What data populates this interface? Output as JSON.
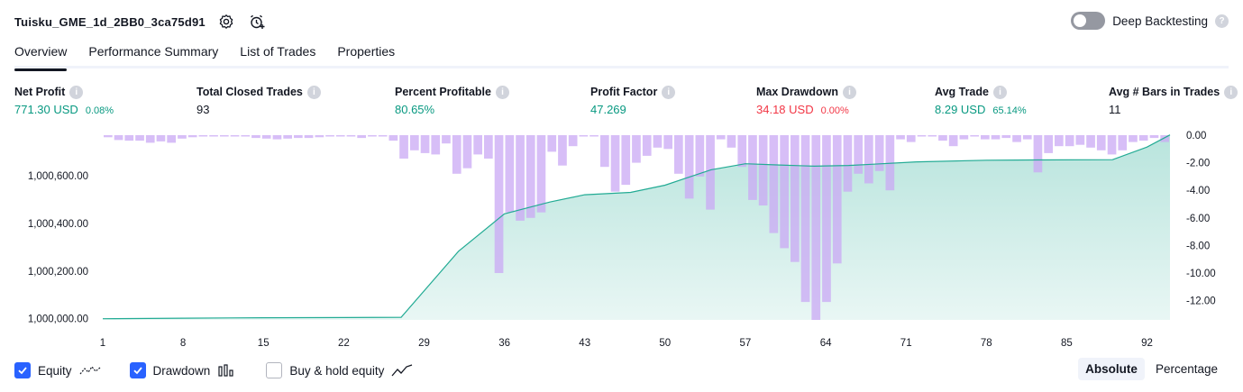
{
  "header": {
    "title": "Tuisku_GME_1d_2BB0_3ca75d91",
    "icons": [
      "settings-icon",
      "alarm-add-icon"
    ],
    "deep_backtesting_label": "Deep Backtesting",
    "deep_backtesting_enabled": false
  },
  "tabs": [
    {
      "label": "Overview",
      "active": true
    },
    {
      "label": "Performance Summary",
      "active": false
    },
    {
      "label": "List of Trades",
      "active": false
    },
    {
      "label": "Properties",
      "active": false
    }
  ],
  "metrics": {
    "net_profit": {
      "label": "Net Profit",
      "value": "771.30 USD",
      "pct": "0.08%"
    },
    "total_closed_trades": {
      "label": "Total Closed Trades",
      "value": "93"
    },
    "percent_profitable": {
      "label": "Percent Profitable",
      "value": "80.65%"
    },
    "profit_factor": {
      "label": "Profit Factor",
      "value": "47.269"
    },
    "max_drawdown": {
      "label": "Max Drawdown",
      "value": "34.18 USD",
      "pct": "0.00%"
    },
    "avg_trade": {
      "label": "Avg Trade",
      "value": "8.29 USD",
      "pct": "65.14%"
    },
    "avg_bars": {
      "label": "Avg # Bars in Trades",
      "value": "11"
    }
  },
  "colors": {
    "profit_green": "#089981",
    "loss_red": "#f23645",
    "equity_line": "#22ab94",
    "drawdown_bar": "#c9a8f4",
    "checkbox_blue": "#2962ff"
  },
  "chart_data": {
    "type": "area",
    "x_ticks": [
      "1",
      "8",
      "15",
      "22",
      "29",
      "36",
      "43",
      "50",
      "57",
      "64",
      "71",
      "78",
      "85",
      "92"
    ],
    "left_axis_ticks": [
      "1,000,000.00",
      "1,000,200.00",
      "1,000,400.00",
      "1,000,600.00"
    ],
    "right_axis_ticks": [
      "0.00",
      "-2.00",
      "-4.00",
      "-6.00",
      "-8.00",
      "-10.00",
      "-12.00"
    ],
    "left_ylim": [
      999995,
      1000770
    ],
    "right_ylim": [
      -13.4,
      0
    ],
    "xlim": [
      1,
      94
    ],
    "series": [
      {
        "name": "Equity",
        "axis": "left",
        "points": [
          [
            1,
            1000000
          ],
          [
            8,
            1000002
          ],
          [
            15,
            1000004
          ],
          [
            22,
            1000005
          ],
          [
            27,
            1000006
          ],
          [
            32,
            1000283
          ],
          [
            36,
            1000440
          ],
          [
            40,
            1000490
          ],
          [
            43,
            1000520
          ],
          [
            47,
            1000530
          ],
          [
            50,
            1000560
          ],
          [
            54,
            1000625
          ],
          [
            57,
            1000650
          ],
          [
            60,
            1000645
          ],
          [
            63,
            1000640
          ],
          [
            66,
            1000643
          ],
          [
            68,
            1000648
          ],
          [
            72,
            1000658
          ],
          [
            78,
            1000665
          ],
          [
            82,
            1000666
          ],
          [
            89,
            1000667
          ],
          [
            92,
            1000720
          ],
          [
            94,
            1000771
          ]
        ]
      },
      {
        "name": "Drawdown",
        "axis": "right",
        "values": [
          -0.15,
          -0.35,
          -0.4,
          -0.4,
          -0.55,
          -0.45,
          -0.55,
          -0.25,
          -0.15,
          -0.1,
          -0.1,
          -0.1,
          -0.1,
          -0.1,
          -0.2,
          -0.25,
          -0.3,
          -0.25,
          -0.2,
          -0.2,
          -0.15,
          -0.1,
          -0.1,
          -0.1,
          -0.2,
          -0.1,
          -0.1,
          -0.4,
          -1.7,
          -1.1,
          -1.3,
          -1.4,
          -0.6,
          -2.8,
          -2.4,
          -1.4,
          -1.7,
          -10.0,
          -5.6,
          -6.2,
          -6.0,
          -5.6,
          -1.2,
          -2.2,
          -0.8,
          -0.1,
          -0.1,
          -2.3,
          -4.1,
          -3.6,
          -2.0,
          -1.5,
          -0.9,
          -1.0,
          -2.8,
          -4.6,
          -3.0,
          -5.4,
          -0.3,
          -0.9,
          -2.3,
          -4.7,
          -5.1,
          -7.1,
          -8.2,
          -9.2,
          -12.1,
          -13.4,
          -12.1,
          -9.3,
          -4.1,
          -2.8,
          -3.5,
          -2.6,
          -4.0,
          -0.3,
          -0.5,
          -0.1,
          -0.1,
          -0.4,
          -0.8,
          -0.3,
          -0.1,
          -0.3,
          -0.3,
          -0.2,
          -0.5,
          -0.3,
          -2.7,
          -1.3,
          -0.8,
          -0.8,
          -0.7,
          -0.9,
          -1.1,
          -1.4,
          -1.1,
          -0.5,
          -0.4,
          -0.2,
          -0.5
        ]
      }
    ]
  },
  "legend": {
    "items": [
      {
        "label": "Equity",
        "checked": true,
        "icon": "equity-line-icon"
      },
      {
        "label": "Drawdown",
        "checked": true,
        "icon": "drawdown-bars-icon"
      },
      {
        "label": "Buy & hold equity",
        "checked": false,
        "icon": "buyhold-line-icon"
      }
    ]
  },
  "mode": {
    "absolute_label": "Absolute",
    "percentage_label": "Percentage",
    "active": "Absolute"
  }
}
